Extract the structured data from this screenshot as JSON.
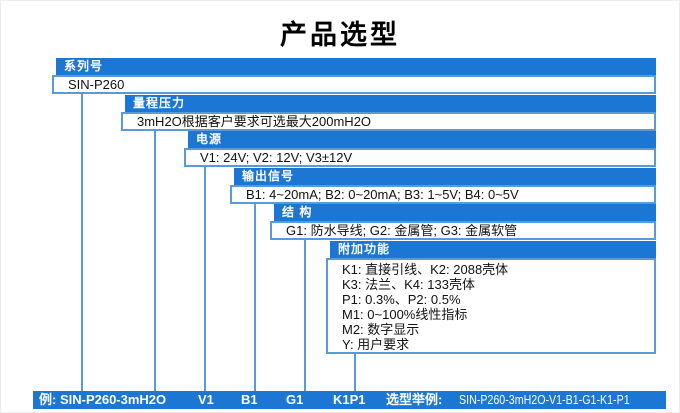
{
  "title": "产品选型",
  "colors": {
    "primary_blue": "#1b77d3",
    "line_blue": "#5b9bd5",
    "text_black": "#111111",
    "header_text": "#ffffff"
  },
  "diagram": {
    "groups": [
      {
        "header": "系列号",
        "value": "SIN-P260"
      },
      {
        "header": "量程压力",
        "value": "3mH2O根据客户要求可选最大200mH2O"
      },
      {
        "header": "电源",
        "value": "V1: 24V;  V2: 12V;  V3±12V"
      },
      {
        "header": "输出信号",
        "value": "B1: 4~20mA;  B2: 0~20mA;  B3: 1~5V;  B4: 0~5V"
      },
      {
        "header": "结 构",
        "value": "G1: 防水导线;  G2: 金属管;  G3: 金属软管"
      },
      {
        "header": "附加功能",
        "value_lines": [
          "K1: 直接引线、K2: 2088壳体",
          "K3: 法兰、K4: 133壳体",
          "P1: 0.3%、P2: 0.5%",
          "M1: 0~100%线性指标",
          "M2: 数字显示",
          "Y: 用户要求"
        ]
      }
    ]
  },
  "example_bar": {
    "example_label": "例: SIN-P260-3mH2O",
    "code_power": "V1",
    "code_output": "B1",
    "code_structure": "G1",
    "code_addons": "K1P1",
    "selection_label": "选型举例:",
    "selection_value": "SIN-P260-3mH2O-V1-B1-G1-K1-P1"
  }
}
